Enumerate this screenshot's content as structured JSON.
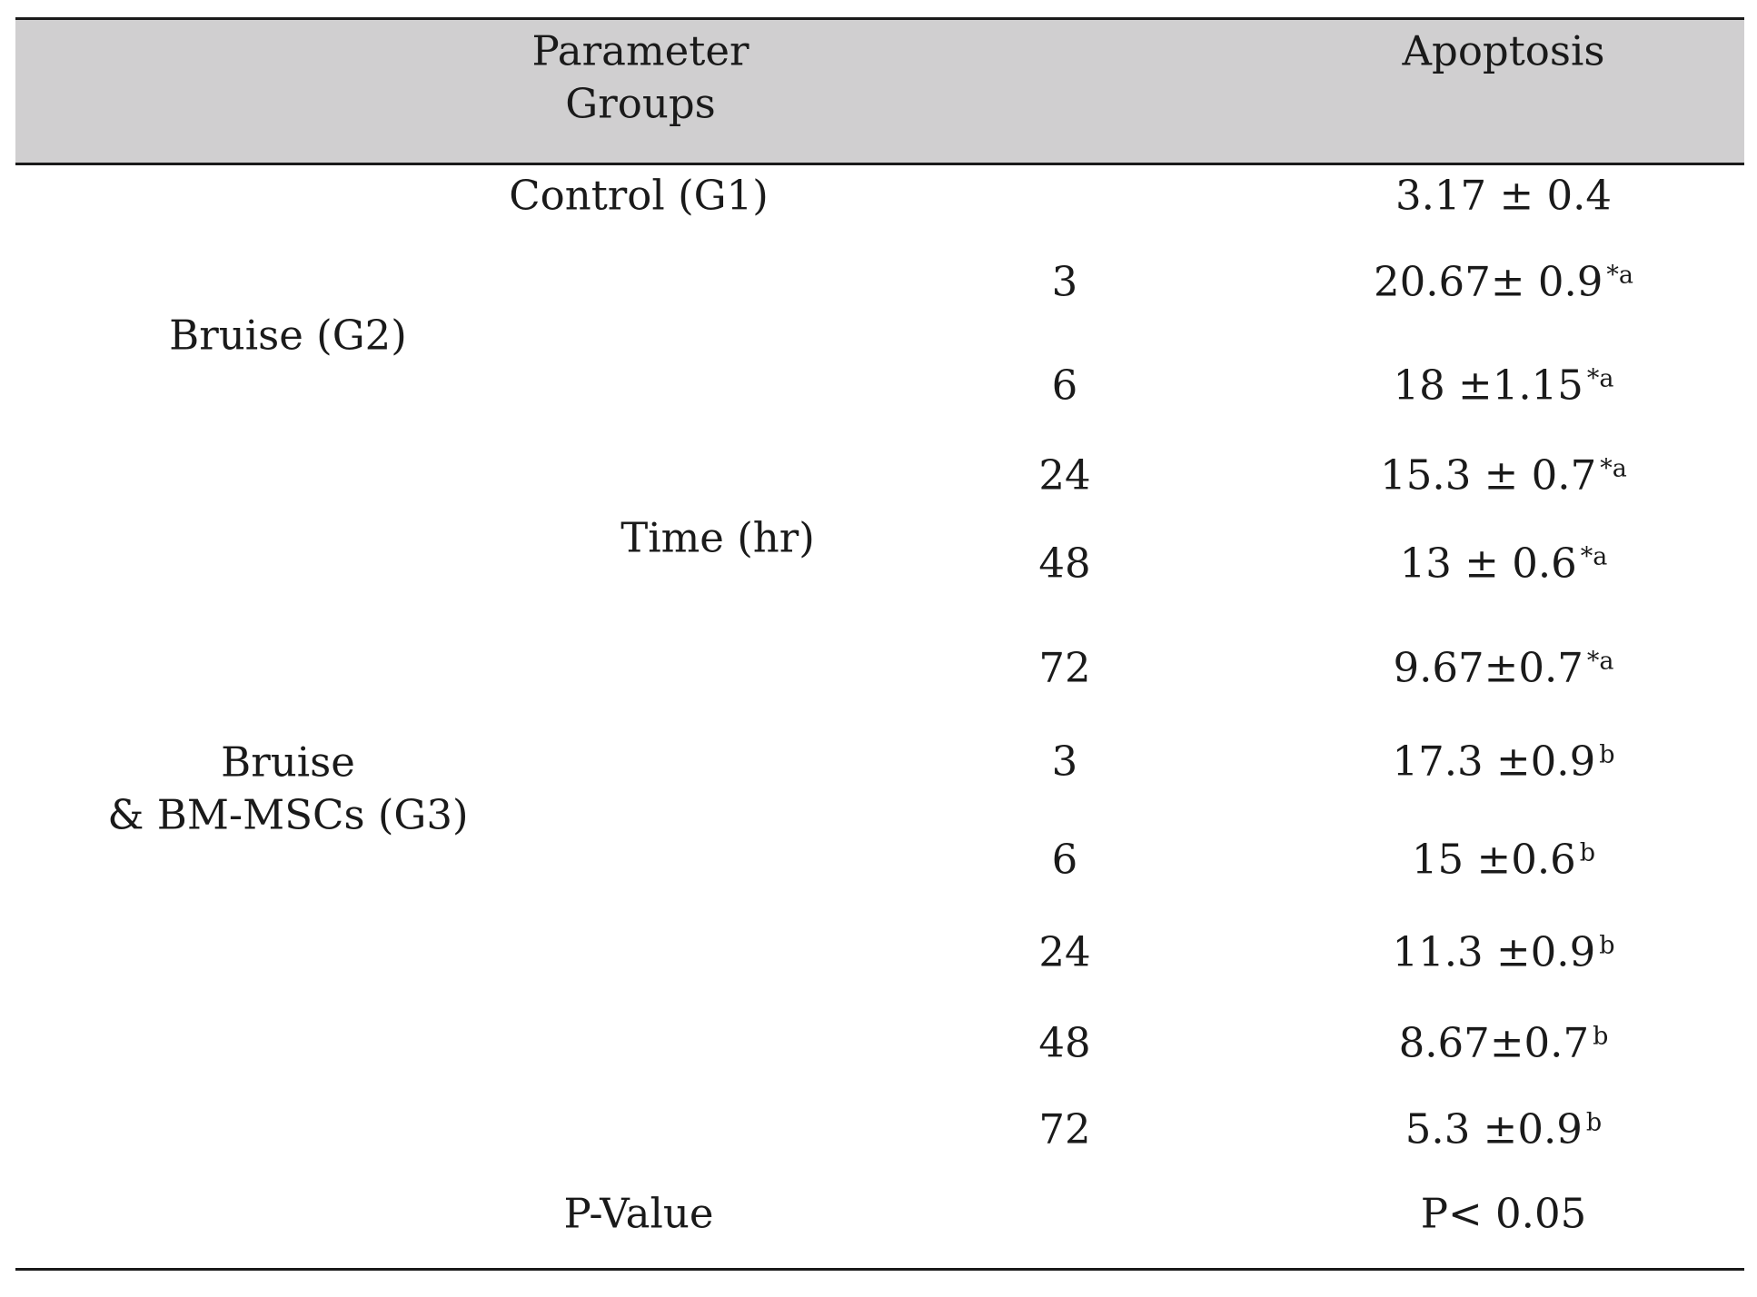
{
  "header": {
    "parameter": "Parameter",
    "groups": "Groups",
    "apoptosis": "Apoptosis"
  },
  "control": {
    "label": "Control (G1)",
    "value": "3.17 ± 0.4"
  },
  "time_label": "Time (hr)",
  "g2": {
    "label": "Bruise (G2)",
    "rows": [
      {
        "time": "3",
        "value": "20.67± 0.9",
        "sup": "*a"
      },
      {
        "time": "6",
        "value": "18 ±1.15",
        "sup": "*a"
      },
      {
        "time": "24",
        "value": "15.3 ± 0.7",
        "sup": "*a"
      },
      {
        "time": "48",
        "value": "13 ± 0.6",
        "sup": "*a"
      },
      {
        "time": "72",
        "value": "9.67±0.7",
        "sup": "*a"
      }
    ]
  },
  "g3": {
    "label_line1": "Bruise",
    "label_line2": "& BM-MSCs (G3)",
    "rows": [
      {
        "time": "3",
        "value": "17.3 ±0.9",
        "sup": "b"
      },
      {
        "time": "6",
        "value": "15 ±0.6",
        "sup": "b"
      },
      {
        "time": "24",
        "value": "11.3 ±0.9",
        "sup": "b"
      },
      {
        "time": "48",
        "value": "8.67±0.7",
        "sup": "b"
      },
      {
        "time": "72",
        "value": "5.3 ±0.9",
        "sup": "b"
      }
    ]
  },
  "pvalue": {
    "label": "P-Value",
    "value": "P< 0.05"
  }
}
